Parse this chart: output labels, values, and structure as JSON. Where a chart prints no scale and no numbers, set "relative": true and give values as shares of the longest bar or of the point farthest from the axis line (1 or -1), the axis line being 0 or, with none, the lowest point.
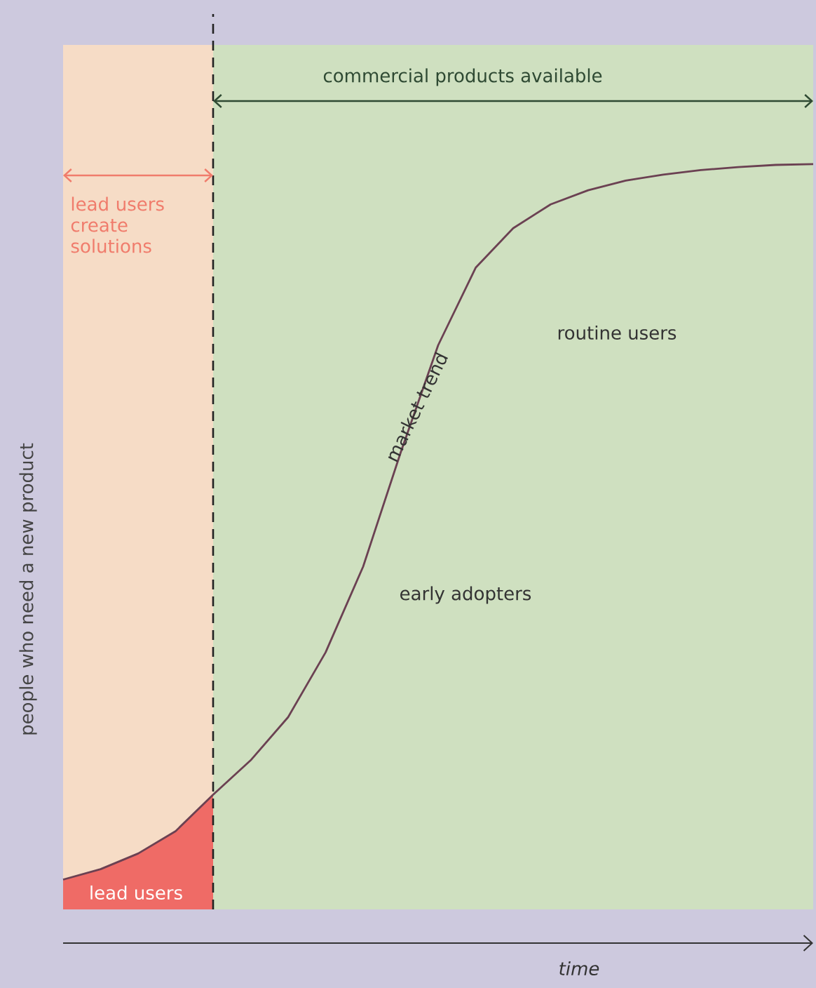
{
  "chart_data": {
    "type": "line",
    "relative": true,
    "xlabel": "time",
    "ylabel": "people who need a new product",
    "categories": [
      null,
      null,
      null,
      null,
      null,
      null,
      null,
      null,
      null,
      null,
      null,
      null,
      null,
      null,
      null,
      null,
      null,
      null,
      null,
      null,
      null
    ],
    "series": [
      {
        "color": "#6b4152",
        "values": [
          0.04,
          0.054,
          0.075,
          0.105,
          0.154,
          0.2,
          0.258,
          0.345,
          0.46,
          0.613,
          0.757,
          0.861,
          0.914,
          0.946,
          0.965,
          0.978,
          0.986,
          0.992,
          0.996,
          0.999,
          1
        ]
      }
    ],
    "annotations": [
      "lead users create solutions",
      "commercial products available",
      "lead users",
      "market trend",
      "routine users",
      "early adopters"
    ]
  }
}
